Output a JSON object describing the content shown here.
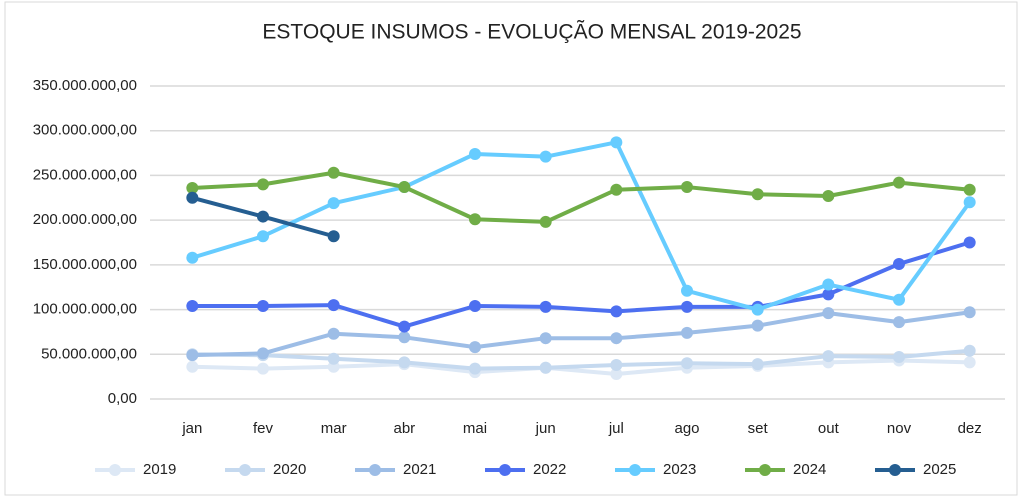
{
  "chart_data": {
    "type": "line",
    "title": "ESTOQUE INSUMOS - EVOLUÇÃO MENSAL 2019-2025",
    "categories": [
      "jan",
      "fev",
      "mar",
      "abr",
      "mai",
      "jun",
      "jul",
      "ago",
      "set",
      "out",
      "nov",
      "dez"
    ],
    "ylim": [
      0,
      350000000
    ],
    "yticks": [
      {
        "value": 0,
        "label": "0,00"
      },
      {
        "value": 50000000,
        "label": "50.000.000,00"
      },
      {
        "value": 100000000,
        "label": "100.000.000,00"
      },
      {
        "value": 150000000,
        "label": "150.000.000,00"
      },
      {
        "value": 200000000,
        "label": "200.000.000,00"
      },
      {
        "value": 250000000,
        "label": "250.000.000,00"
      },
      {
        "value": 300000000,
        "label": "300.000.000,00"
      },
      {
        "value": 350000000,
        "label": "350.000.000,00"
      }
    ],
    "grid": true,
    "legend": "bottom",
    "series": [
      {
        "name": "2019",
        "color": "#dde8f5",
        "values": [
          36000000,
          34000000,
          36000000,
          39000000,
          30000000,
          35000000,
          28000000,
          35000000,
          37000000,
          41000000,
          43000000,
          41000000
        ]
      },
      {
        "name": "2020",
        "color": "#c5d9ef",
        "values": [
          50000000,
          49000000,
          45000000,
          41000000,
          34000000,
          35000000,
          38000000,
          40000000,
          39000000,
          48000000,
          47000000,
          54000000
        ]
      },
      {
        "name": "2021",
        "color": "#9dbde6",
        "values": [
          49000000,
          51000000,
          73000000,
          69000000,
          58000000,
          68000000,
          68000000,
          74000000,
          82000000,
          96000000,
          86000000,
          97000000
        ]
      },
      {
        "name": "2022",
        "color": "#4d6ff0",
        "values": [
          104000000,
          104000000,
          105000000,
          81000000,
          104000000,
          103000000,
          98000000,
          103000000,
          103000000,
          117000000,
          151000000,
          175000000
        ]
      },
      {
        "name": "2023",
        "color": "#66ccff",
        "values": [
          158000000,
          182000000,
          219000000,
          237000000,
          274000000,
          271000000,
          287000000,
          121000000,
          100000000,
          128000000,
          111000000,
          220000000
        ]
      },
      {
        "name": "2024",
        "color": "#70ad47",
        "values": [
          236000000,
          240000000,
          253000000,
          237000000,
          201000000,
          198000000,
          234000000,
          237000000,
          229000000,
          227000000,
          242000000,
          234000000
        ]
      },
      {
        "name": "2025",
        "color": "#255e91",
        "values": [
          225000000,
          204000000,
          182000000,
          null,
          null,
          null,
          null,
          null,
          null,
          null,
          null,
          null
        ]
      }
    ]
  }
}
